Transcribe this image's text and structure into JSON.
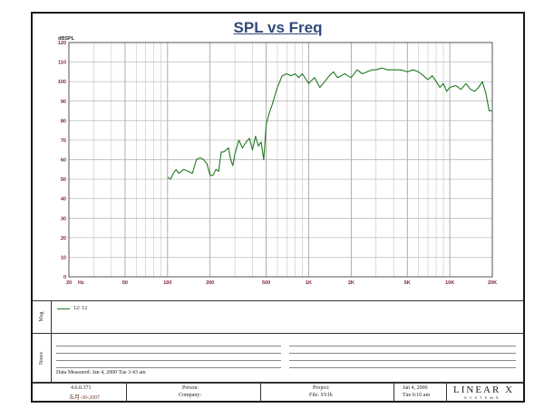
{
  "chart_data": {
    "type": "line",
    "title": "SPL vs Freq",
    "ylabel": "dBSPL",
    "xlabel": "Hz",
    "x_scale": "log",
    "xlim": [
      20,
      20000
    ],
    "ylim": [
      0,
      120
    ],
    "y_ticks": [
      "0",
      "10",
      "20",
      "30",
      "40",
      "50",
      "60",
      "70",
      "80",
      "90",
      "100",
      "110",
      "120"
    ],
    "x_ticks": [
      {
        "v": 20,
        "label": "20"
      },
      {
        "v": 50,
        "label": "50"
      },
      {
        "v": 100,
        "label": "100"
      },
      {
        "v": 200,
        "label": "200"
      },
      {
        "v": 500,
        "label": "500"
      },
      {
        "v": 1000,
        "label": "1K"
      },
      {
        "v": 2000,
        "label": "2K"
      },
      {
        "v": 5000,
        "label": "5K"
      },
      {
        "v": 10000,
        "label": "10K"
      },
      {
        "v": 20000,
        "label": "20K"
      }
    ],
    "grid": true,
    "series": [
      {
        "name": "12: 12",
        "color": "#1f7a1f",
        "x": [
          100,
          105,
          110,
          115,
          120,
          125,
          130,
          140,
          150,
          160,
          170,
          180,
          190,
          200,
          210,
          220,
          230,
          240,
          250,
          260,
          270,
          280,
          290,
          300,
          320,
          340,
          360,
          380,
          400,
          420,
          440,
          460,
          480,
          500,
          520,
          550,
          600,
          650,
          700,
          750,
          800,
          850,
          900,
          1000,
          1100,
          1200,
          1300,
          1400,
          1500,
          1600,
          1700,
          1800,
          2000,
          2200,
          2400,
          2600,
          2800,
          3000,
          3300,
          3600,
          4000,
          4500,
          5000,
          5500,
          6000,
          6500,
          7000,
          7500,
          8000,
          8500,
          9000,
          9500,
          10000,
          11000,
          12000,
          13000,
          14000,
          15000,
          16000,
          17000,
          18000,
          19000,
          20000
        ],
        "y": [
          51,
          50,
          53,
          55,
          53,
          54,
          55,
          54,
          53,
          60,
          61,
          60,
          58,
          52,
          52,
          55,
          54,
          64,
          64,
          65,
          66,
          60,
          57,
          63,
          70,
          66,
          69,
          71,
          65,
          72,
          67,
          69,
          60,
          78,
          83,
          88,
          97,
          103,
          104,
          103,
          104,
          102,
          104,
          99,
          102,
          97,
          100,
          103,
          105,
          102,
          103,
          104,
          102,
          106,
          104,
          105,
          106,
          106,
          107,
          106,
          106,
          106,
          105,
          106,
          105,
          103,
          101,
          103,
          100,
          97,
          99,
          95,
          97,
          98,
          96,
          99,
          96,
          95,
          97,
          100,
          94,
          85,
          85
        ]
      }
    ]
  },
  "map_panel": {
    "label": "Mag",
    "legend_entry": "12: 12"
  },
  "notes_panel": {
    "label": "Notes",
    "date_measured": "Data Measured: Jan 4, 2000  Tue 3:43 am"
  },
  "title_block": {
    "version": "4.6.0.371",
    "date_code": "五月-30-2007",
    "person": "Person:",
    "company": "Company:",
    "project": "Project:",
    "file": "File: SY.lb",
    "date": "Jan 4, 2000",
    "time": "Tue 6:16 am",
    "logo": "LINEAR X",
    "logo_sub": "S Y S T E M S"
  }
}
